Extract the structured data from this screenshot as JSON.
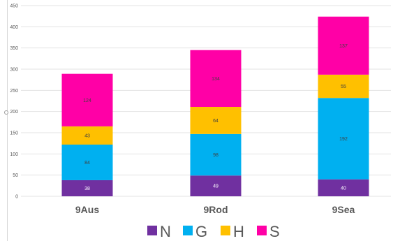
{
  "chart_data": {
    "type": "bar",
    "stacked": true,
    "title": "",
    "xlabel": "",
    "ylabel": "",
    "ylim": [
      0,
      450
    ],
    "yticks": [
      0,
      50,
      100,
      150,
      200,
      250,
      300,
      350,
      400,
      450
    ],
    "grid": true,
    "legend_position": "bottom",
    "categories": [
      "9Aus",
      "9Rod",
      "9Sea"
    ],
    "series": [
      {
        "name": "N",
        "color": "#7030a0",
        "label_color": "#ffffff",
        "values": [
          38,
          49,
          40
        ]
      },
      {
        "name": "G",
        "color": "#00b0f0",
        "label_color": "#404040",
        "values": [
          84,
          98,
          192
        ]
      },
      {
        "name": "H",
        "color": "#ffc000",
        "label_color": "#404040",
        "values": [
          43,
          64,
          55
        ]
      },
      {
        "name": "S",
        "color": "#ff00a6",
        "label_color": "#404040",
        "values": [
          124,
          134,
          137
        ]
      }
    ]
  }
}
